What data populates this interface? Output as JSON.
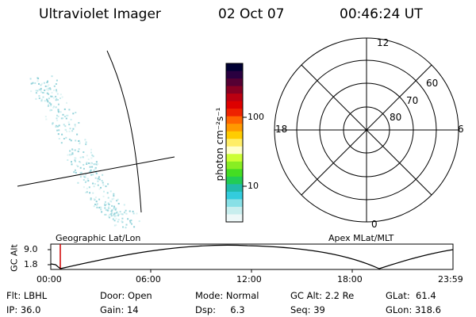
{
  "header": {
    "instrument": "Ultraviolet Imager",
    "date": "02 Oct 07",
    "time": "00:46:24 UT"
  },
  "colorbar": {
    "label": "photon cm⁻²s⁻¹",
    "ticks": [
      "100",
      "10"
    ],
    "colors": [
      "#000033",
      "#2a0040",
      "#550033",
      "#880022",
      "#bb0011",
      "#dd0000",
      "#ee2200",
      "#ff6600",
      "#ff9900",
      "#ffcc00",
      "#ffee66",
      "#ffffcc",
      "#ccff33",
      "#88ee22",
      "#44dd22",
      "#22cc55",
      "#22bbaa",
      "#33ccdd",
      "#88e0e6",
      "#c8eeee",
      "#eef8f8"
    ]
  },
  "polar": {
    "hour_labels": [
      "12",
      "18",
      "6",
      "0"
    ],
    "lat_labels": [
      "60",
      "70",
      "80"
    ]
  },
  "map": {
    "label_left": "Geographic Lat/Lon",
    "label_right": "Apex MLat/MLT"
  },
  "altitude_plot": {
    "ylabel": "GC Alt",
    "yticks": [
      "9.0",
      "1.8"
    ],
    "xticks": [
      "00:00",
      "06:00",
      "12:00",
      "18:00",
      "23:59"
    ]
  },
  "status": {
    "flt": "Flt: LBHL",
    "ip": "IP: 36.0",
    "door": "Door: Open",
    "gain": "Gain: 14",
    "mode": "Mode: Normal",
    "dsp": "Dsp:     6.3",
    "gc_alt": "GC Alt: 2.2 Re",
    "seq": "Seq: 39",
    "glat": "GLat:  61.4",
    "glon": "GLon: 318.6"
  }
}
